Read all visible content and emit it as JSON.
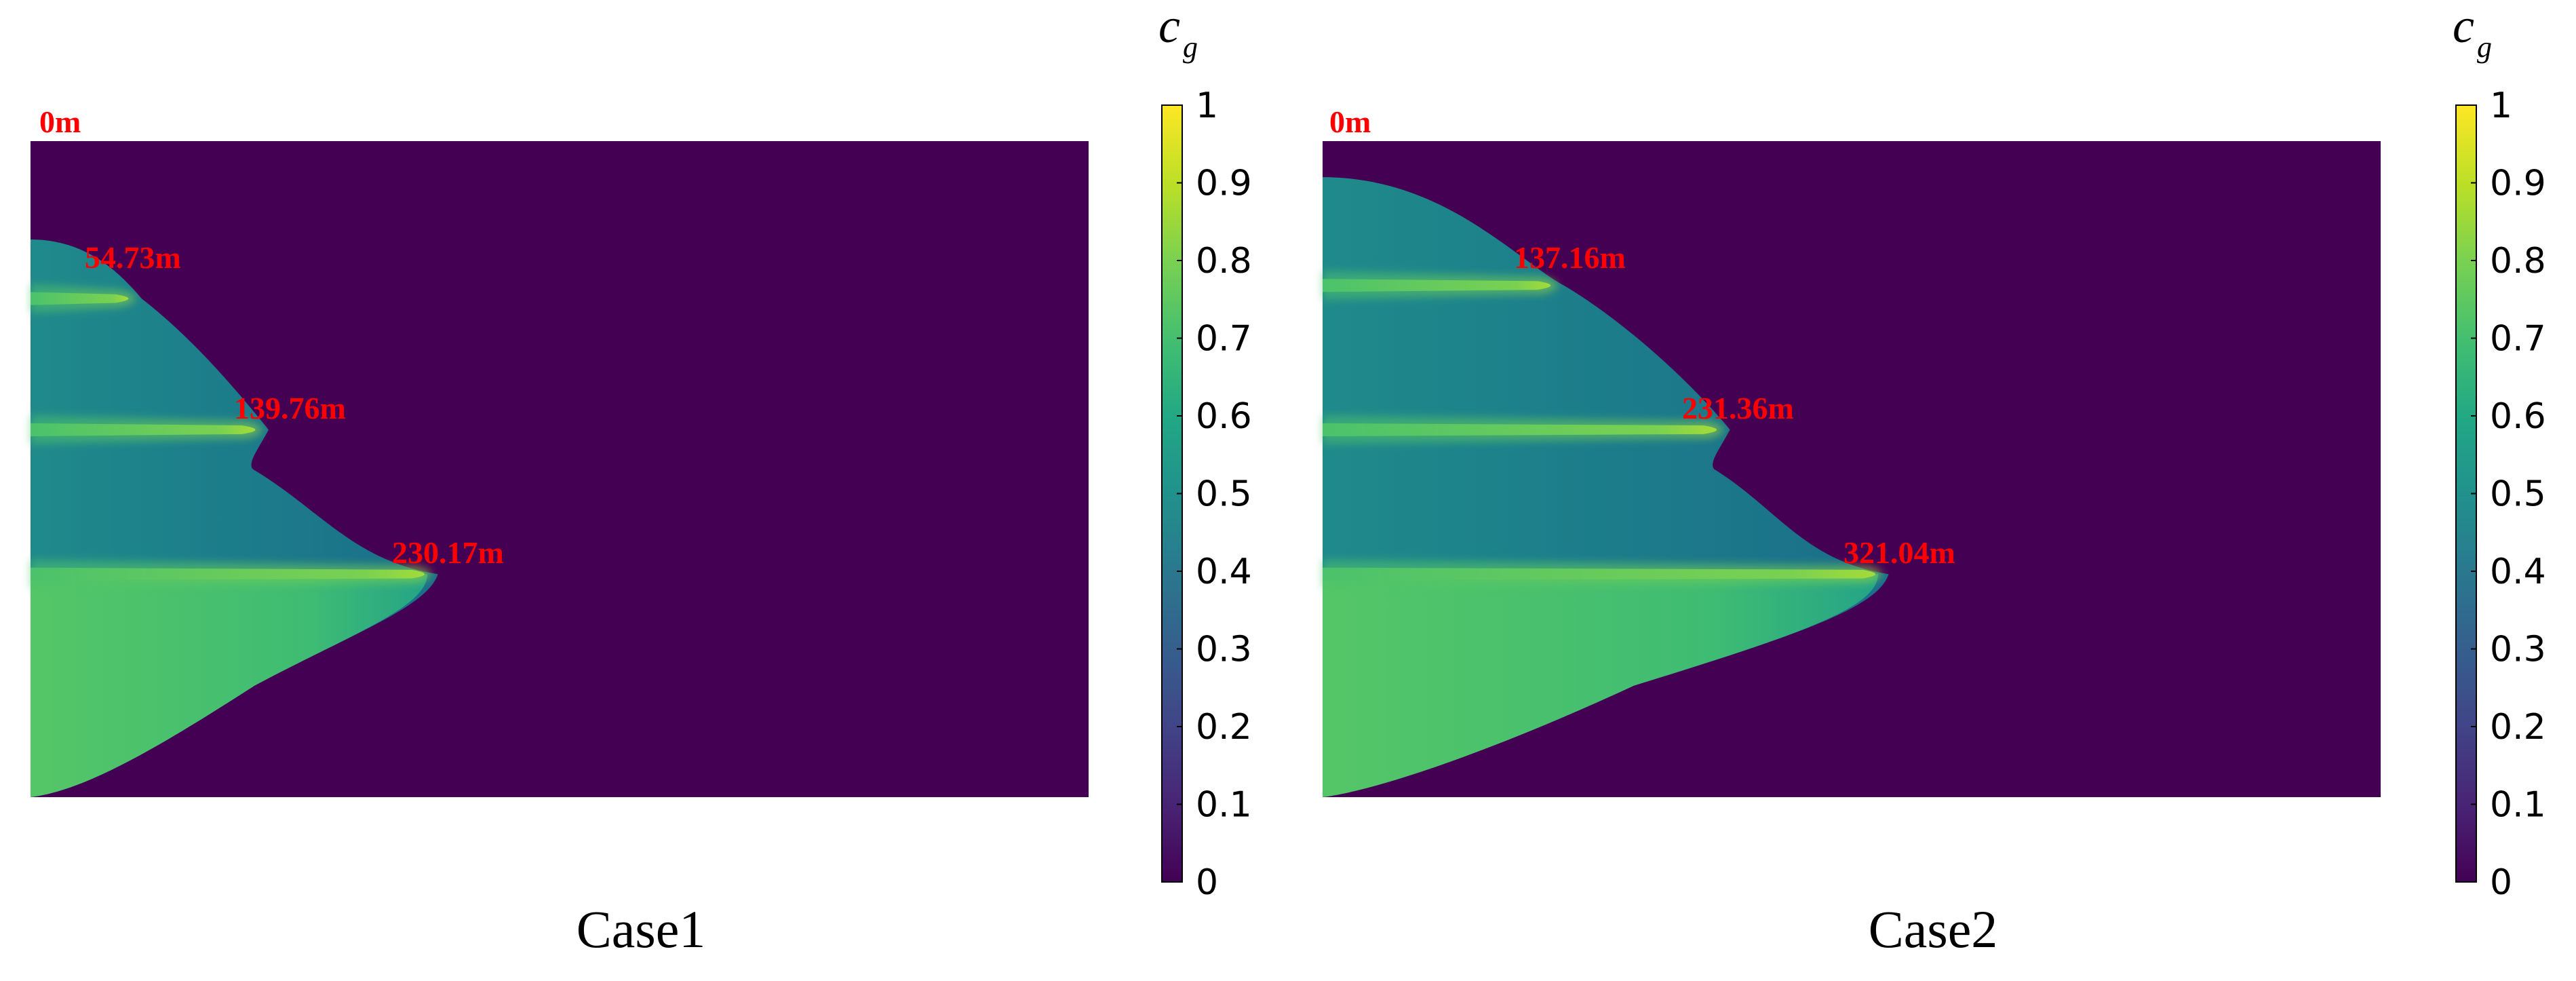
{
  "chart_data": [
    {
      "type": "heatmap",
      "title": "Case1",
      "colorbar": {
        "label": "c",
        "label_subscript": "g",
        "range": [
          0,
          1
        ],
        "ticks": [
          "0",
          "0.1",
          "0.2",
          "0.3",
          "0.4",
          "0.5",
          "0.6",
          "0.7",
          "0.8",
          "0.9",
          "1"
        ],
        "colormap": "viridis"
      },
      "annotations": [
        "0m",
        "54.73m",
        "139.76m",
        "230.17m"
      ],
      "background_value": 0,
      "front_extents": [
        54.73,
        139.76,
        230.17
      ],
      "layer_values": {
        "zone": 0.45,
        "stripe": 0.75,
        "bottom": 0.7
      }
    },
    {
      "type": "heatmap",
      "title": "Case2",
      "colorbar": {
        "label": "c",
        "label_subscript": "g",
        "range": [
          0,
          1
        ],
        "ticks": [
          "0",
          "0.1",
          "0.2",
          "0.3",
          "0.4",
          "0.5",
          "0.6",
          "0.7",
          "0.8",
          "0.9",
          "1"
        ],
        "colormap": "viridis"
      },
      "annotations": [
        "0m",
        "137.16m",
        "231.36m",
        "321.04m"
      ],
      "background_value": 0,
      "front_extents": [
        137.16,
        231.36,
        321.04
      ],
      "layer_values": {
        "zone": 0.45,
        "stripe": 0.75,
        "bottom": 0.7
      }
    }
  ],
  "colors": {
    "background_purple": "#440154",
    "annotation_red": "#ff0000"
  }
}
